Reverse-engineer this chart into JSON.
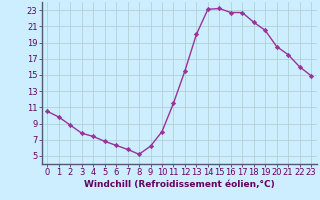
{
  "x": [
    0,
    1,
    2,
    3,
    4,
    5,
    6,
    7,
    8,
    9,
    10,
    11,
    12,
    13,
    14,
    15,
    16,
    17,
    18,
    19,
    20,
    21,
    22,
    23
  ],
  "y": [
    10.5,
    9.8,
    8.8,
    7.8,
    7.4,
    6.8,
    6.3,
    5.8,
    5.2,
    6.2,
    8.0,
    11.5,
    15.5,
    20.0,
    23.1,
    23.2,
    22.7,
    22.7,
    21.5,
    20.5,
    18.5,
    17.5,
    16.0,
    14.9
  ],
  "line_color": "#993399",
  "marker": "D",
  "marker_size": 2.2,
  "bg_color": "#cceeff",
  "grid_color": "#aacccc",
  "xlabel": "Windchill (Refroidissement éolien,°C)",
  "xlim": [
    -0.5,
    23.5
  ],
  "ylim": [
    4,
    24
  ],
  "yticks": [
    5,
    7,
    9,
    11,
    13,
    15,
    17,
    19,
    21,
    23
  ],
  "xticks": [
    0,
    1,
    2,
    3,
    4,
    5,
    6,
    7,
    8,
    9,
    10,
    11,
    12,
    13,
    14,
    15,
    16,
    17,
    18,
    19,
    20,
    21,
    22,
    23
  ],
  "xlabel_fontsize": 6.5,
  "tick_fontsize": 6.0,
  "linewidth": 1.0,
  "label_color": "#660066",
  "spine_color": "#8899aa"
}
